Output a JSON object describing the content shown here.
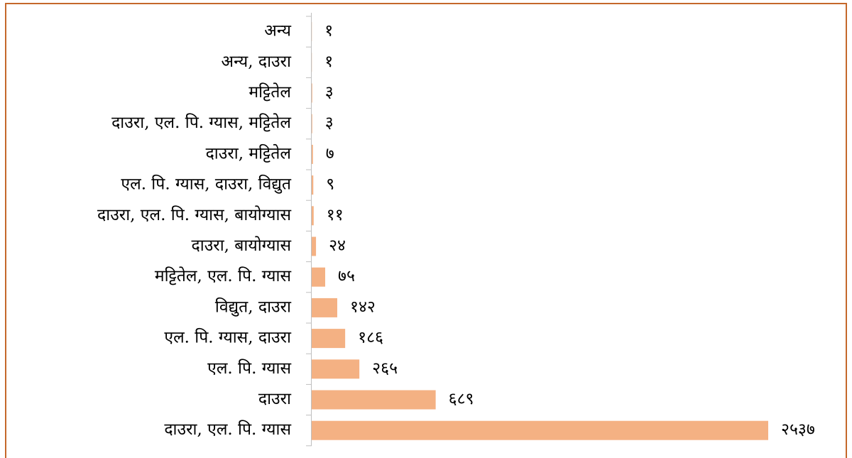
{
  "chart_data": {
    "type": "bar",
    "orientation": "horizontal",
    "color": "#f4b183",
    "categories": [
      "अन्य",
      "अन्य, दाउरा",
      "मट्टितेल",
      "दाउरा, एल. पि. ग्यास, मट्टितेल",
      "दाउरा, मट्टितेल",
      "एल. पि. ग्यास, दाउरा, विद्युत",
      "दाउरा, एल. पि. ग्यास, बायोग्यास",
      "दाउरा, बायोग्यास",
      "मट्टितेल, एल. पि. ग्यास",
      "विद्युत, दाउरा",
      "एल. पि. ग्यास, दाउरा",
      "एल. पि. ग्यास",
      "दाउरा",
      "दाउरा, एल. पि. ग्यास"
    ],
    "values": [
      1,
      1,
      3,
      3,
      7,
      9,
      11,
      24,
      75,
      142,
      186,
      265,
      689,
      2537
    ],
    "value_labels": [
      "१",
      "१",
      "३",
      "३",
      "७",
      "९",
      "११",
      "२४",
      "७५",
      "१४२",
      "१८६",
      "२६५",
      "६८९",
      "२५३७"
    ]
  }
}
